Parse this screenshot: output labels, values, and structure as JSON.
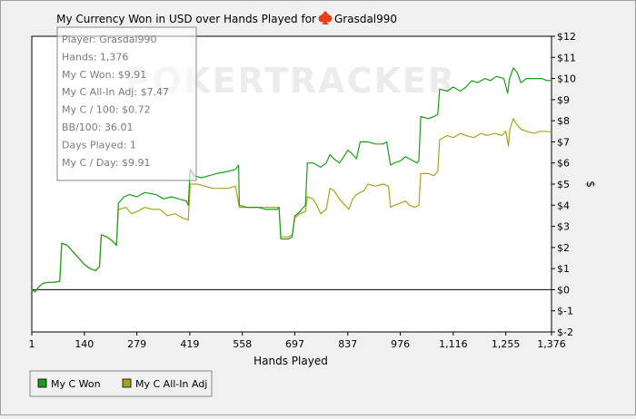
{
  "chart_data": {
    "type": "line",
    "title": "My Currency Won in USD over Hands Played for",
    "player_name": "Grasdal990",
    "watermark": "POKERTRACKER",
    "xlabel": "Hands Played",
    "ylabel": "$",
    "xlim": [
      1,
      1376
    ],
    "ylim": [
      -2,
      12
    ],
    "x_ticks": [
      1,
      140,
      279,
      419,
      558,
      697,
      837,
      976,
      1116,
      1255,
      1376
    ],
    "x_tick_labels": [
      "1",
      "140",
      "279",
      "419",
      "558",
      "697",
      "837",
      "976",
      "1,116",
      "1,255",
      "1,376"
    ],
    "y_ticks": [
      -2,
      -1,
      0,
      1,
      2,
      3,
      4,
      5,
      6,
      7,
      8,
      9,
      10,
      11,
      12
    ],
    "y_tick_labels": [
      "$-2",
      "$-1",
      "$0",
      "$1",
      "$2",
      "$3",
      "$4",
      "$5",
      "$6",
      "$7",
      "$8",
      "$9",
      "$10",
      "$11",
      "$12"
    ],
    "grid": false,
    "legend_position": "bottom-left",
    "stats_box": [
      "Player: Grasdal990",
      "Hands: 1,376",
      "My C Won: $9.91",
      "My C All-In Adj: $7.47",
      "My C / 100: $0.72",
      "BB/100: 36.01",
      "Days Played: 1",
      "My C / Day: $9.91"
    ],
    "series": [
      {
        "name": "My C Won",
        "color": "#1e9a1e",
        "points": [
          [
            1,
            0
          ],
          [
            10,
            -0.1
          ],
          [
            20,
            0.15
          ],
          [
            30,
            0.3
          ],
          [
            45,
            0.35
          ],
          [
            60,
            0.35
          ],
          [
            75,
            0.4
          ],
          [
            80,
            2.2
          ],
          [
            95,
            2.1
          ],
          [
            110,
            1.8
          ],
          [
            125,
            1.5
          ],
          [
            140,
            1.2
          ],
          [
            155,
            1.0
          ],
          [
            170,
            0.9
          ],
          [
            180,
            1.1
          ],
          [
            185,
            2.6
          ],
          [
            200,
            2.5
          ],
          [
            215,
            2.3
          ],
          [
            225,
            2.1
          ],
          [
            230,
            4.1
          ],
          [
            245,
            4.4
          ],
          [
            260,
            4.5
          ],
          [
            279,
            4.4
          ],
          [
            300,
            4.6
          ],
          [
            330,
            4.5
          ],
          [
            350,
            4.3
          ],
          [
            370,
            4.4
          ],
          [
            390,
            4.3
          ],
          [
            410,
            4.2
          ],
          [
            415,
            4.0
          ],
          [
            420,
            5.7
          ],
          [
            430,
            5.4
          ],
          [
            450,
            5.3
          ],
          [
            470,
            5.4
          ],
          [
            490,
            5.5
          ],
          [
            520,
            5.6
          ],
          [
            540,
            5.7
          ],
          [
            548,
            5.9
          ],
          [
            550,
            4.0
          ],
          [
            570,
            3.9
          ],
          [
            600,
            3.9
          ],
          [
            620,
            3.8
          ],
          [
            650,
            3.8
          ],
          [
            655,
            3.9
          ],
          [
            660,
            2.4
          ],
          [
            680,
            2.4
          ],
          [
            690,
            2.5
          ],
          [
            697,
            3.5
          ],
          [
            705,
            3.6
          ],
          [
            715,
            3.8
          ],
          [
            725,
            4.0
          ],
          [
            730,
            6.0
          ],
          [
            745,
            6.0
          ],
          [
            755,
            5.9
          ],
          [
            765,
            5.8
          ],
          [
            780,
            6.0
          ],
          [
            790,
            6.4
          ],
          [
            800,
            6.2
          ],
          [
            815,
            6.0
          ],
          [
            830,
            6.4
          ],
          [
            837,
            6.6
          ],
          [
            845,
            6.5
          ],
          [
            860,
            6.2
          ],
          [
            870,
            7.0
          ],
          [
            890,
            7.0
          ],
          [
            910,
            6.9
          ],
          [
            930,
            6.9
          ],
          [
            940,
            7.0
          ],
          [
            950,
            5.9
          ],
          [
            960,
            6.0
          ],
          [
            976,
            6.1
          ],
          [
            990,
            6.3
          ],
          [
            1000,
            6.2
          ],
          [
            1010,
            6.1
          ],
          [
            1020,
            6.0
          ],
          [
            1025,
            6.1
          ],
          [
            1030,
            8.2
          ],
          [
            1050,
            8.1
          ],
          [
            1065,
            8.2
          ],
          [
            1075,
            8.3
          ],
          [
            1080,
            9.5
          ],
          [
            1100,
            9.4
          ],
          [
            1116,
            9.6
          ],
          [
            1135,
            9.4
          ],
          [
            1150,
            9.6
          ],
          [
            1165,
            9.9
          ],
          [
            1180,
            9.8
          ],
          [
            1200,
            10.0
          ],
          [
            1215,
            9.9
          ],
          [
            1230,
            10.1
          ],
          [
            1250,
            10.0
          ],
          [
            1260,
            9.3
          ],
          [
            1265,
            10.0
          ],
          [
            1275,
            10.5
          ],
          [
            1285,
            10.3
          ],
          [
            1295,
            9.8
          ],
          [
            1310,
            10.0
          ],
          [
            1330,
            10.0
          ],
          [
            1350,
            10.0
          ],
          [
            1365,
            9.9
          ],
          [
            1376,
            9.91
          ]
        ]
      },
      {
        "name": "My C All-In Adj",
        "color": "#a7a31e",
        "points": [
          [
            1,
            0
          ],
          [
            10,
            -0.1
          ],
          [
            20,
            0.15
          ],
          [
            30,
            0.3
          ],
          [
            45,
            0.35
          ],
          [
            60,
            0.35
          ],
          [
            75,
            0.4
          ],
          [
            80,
            2.2
          ],
          [
            95,
            2.1
          ],
          [
            110,
            1.8
          ],
          [
            125,
            1.5
          ],
          [
            140,
            1.2
          ],
          [
            155,
            1.0
          ],
          [
            170,
            0.9
          ],
          [
            180,
            1.1
          ],
          [
            185,
            2.6
          ],
          [
            200,
            2.5
          ],
          [
            215,
            2.3
          ],
          [
            225,
            2.1
          ],
          [
            230,
            3.8
          ],
          [
            250,
            3.9
          ],
          [
            265,
            3.6
          ],
          [
            279,
            3.7
          ],
          [
            300,
            3.9
          ],
          [
            320,
            3.8
          ],
          [
            340,
            3.8
          ],
          [
            360,
            3.5
          ],
          [
            380,
            3.6
          ],
          [
            400,
            3.4
          ],
          [
            415,
            3.3
          ],
          [
            420,
            5.0
          ],
          [
            440,
            5.0
          ],
          [
            460,
            4.9
          ],
          [
            480,
            4.8
          ],
          [
            500,
            4.8
          ],
          [
            520,
            4.8
          ],
          [
            540,
            4.9
          ],
          [
            550,
            3.9
          ],
          [
            575,
            3.9
          ],
          [
            600,
            3.9
          ],
          [
            620,
            3.9
          ],
          [
            650,
            3.9
          ],
          [
            655,
            3.9
          ],
          [
            660,
            2.5
          ],
          [
            680,
            2.5
          ],
          [
            690,
            2.6
          ],
          [
            697,
            3.4
          ],
          [
            710,
            3.6
          ],
          [
            725,
            3.7
          ],
          [
            730,
            4.4
          ],
          [
            745,
            4.3
          ],
          [
            755,
            4.0
          ],
          [
            765,
            3.6
          ],
          [
            780,
            3.8
          ],
          [
            790,
            4.8
          ],
          [
            800,
            4.7
          ],
          [
            815,
            4.3
          ],
          [
            830,
            4.0
          ],
          [
            840,
            3.8
          ],
          [
            850,
            4.3
          ],
          [
            860,
            4.5
          ],
          [
            870,
            4.6
          ],
          [
            880,
            4.7
          ],
          [
            890,
            5.0
          ],
          [
            910,
            4.9
          ],
          [
            930,
            5.0
          ],
          [
            945,
            4.9
          ],
          [
            950,
            3.9
          ],
          [
            960,
            4.0
          ],
          [
            976,
            4.1
          ],
          [
            990,
            4.2
          ],
          [
            1000,
            4.0
          ],
          [
            1015,
            3.9
          ],
          [
            1025,
            4.0
          ],
          [
            1030,
            5.5
          ],
          [
            1050,
            5.5
          ],
          [
            1065,
            5.4
          ],
          [
            1075,
            5.6
          ],
          [
            1080,
            7.1
          ],
          [
            1100,
            7.3
          ],
          [
            1116,
            7.2
          ],
          [
            1135,
            7.4
          ],
          [
            1150,
            7.3
          ],
          [
            1170,
            7.2
          ],
          [
            1190,
            7.4
          ],
          [
            1205,
            7.3
          ],
          [
            1225,
            7.4
          ],
          [
            1245,
            7.3
          ],
          [
            1255,
            7.5
          ],
          [
            1262,
            6.8
          ],
          [
            1266,
            7.6
          ],
          [
            1275,
            8.1
          ],
          [
            1285,
            7.8
          ],
          [
            1295,
            7.6
          ],
          [
            1310,
            7.5
          ],
          [
            1330,
            7.4
          ],
          [
            1345,
            7.5
          ],
          [
            1360,
            7.5
          ],
          [
            1376,
            7.47
          ]
        ]
      }
    ]
  }
}
